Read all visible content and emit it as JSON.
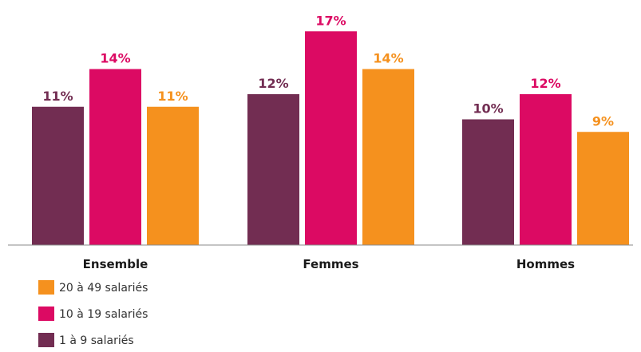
{
  "chart_data": {
    "type": "bar",
    "categories": [
      "Ensemble",
      "Femmes",
      "Hommes"
    ],
    "series": [
      {
        "name": "1 à 9 salariés",
        "values": [
          11,
          12,
          10
        ],
        "labels": [
          "11%",
          "12%",
          "10%"
        ],
        "color": "#722d52",
        "label_color": "#722d52"
      },
      {
        "name": "10 à 19 salariés",
        "values": [
          14,
          17,
          12
        ],
        "labels": [
          "14%",
          "17%",
          "12%"
        ],
        "color": "#dc0a63",
        "label_color": "#dc0a63"
      },
      {
        "name": "20 à 49 salariés",
        "values": [
          11,
          14,
          9
        ],
        "labels": [
          "11%",
          "14%",
          "9%"
        ],
        "color": "#f5911e",
        "label_color": "#f5911e"
      }
    ],
    "legend_order": [
      2,
      1,
      0
    ],
    "legend_position": "bottom-left",
    "ylim": [
      0,
      18
    ],
    "grid": false,
    "axis_color": "#8a8a8a"
  }
}
